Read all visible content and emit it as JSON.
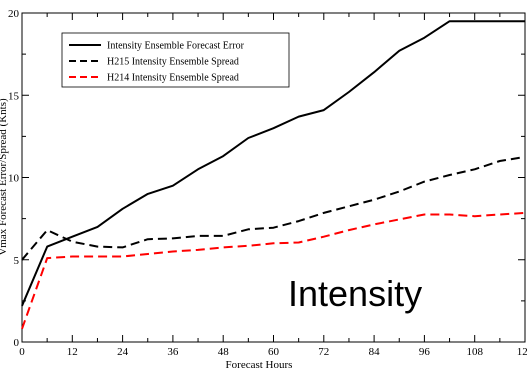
{
  "chart_data": {
    "type": "line",
    "xlabel": "Forecast Hours",
    "ylabel": "Vmax Forecast Error/Spread (Knts)",
    "xlim": [
      0,
      120
    ],
    "ylim": [
      0,
      20
    ],
    "xticks": [
      "0",
      "12",
      "24",
      "36",
      "48",
      "60",
      "72",
      "84",
      "96",
      "108",
      "120"
    ],
    "yticks": [
      "0",
      "5",
      "10",
      "15",
      "20"
    ],
    "grid": false,
    "legend_position": "top-left",
    "annotation": "Intensity",
    "series": [
      {
        "name": "Intensity Ensemble Forecast Error",
        "color": "#000000",
        "dash": "solid",
        "x": [
          0,
          6,
          12,
          18,
          24,
          30,
          36,
          42,
          48,
          54,
          60,
          66,
          72,
          78,
          84,
          90,
          96,
          102,
          108,
          114,
          120
        ],
        "y": [
          2.2,
          5.8,
          6.4,
          7.0,
          8.1,
          9.0,
          9.5,
          10.5,
          11.3,
          12.4,
          13.0,
          13.7,
          14.1,
          15.2,
          16.4,
          17.7,
          18.5,
          19.5,
          19.5,
          19.5,
          19.5
        ]
      },
      {
        "name": "H215 Intensity Ensemble Spread",
        "color": "#000000",
        "dash": "dashed",
        "x": [
          0,
          6,
          12,
          18,
          24,
          30,
          36,
          42,
          48,
          54,
          60,
          66,
          72,
          78,
          84,
          90,
          96,
          102,
          108,
          114,
          120
        ],
        "y": [
          5.0,
          6.8,
          6.1,
          5.8,
          5.75,
          6.25,
          6.3,
          6.45,
          6.45,
          6.85,
          6.95,
          7.35,
          7.85,
          8.25,
          8.65,
          9.15,
          9.75,
          10.15,
          10.5,
          11.0,
          11.25
        ]
      },
      {
        "name": "H214 Intensity Ensemble Spread",
        "color": "#ff0000",
        "dash": "dashed",
        "x": [
          0,
          6,
          12,
          18,
          24,
          30,
          36,
          42,
          48,
          54,
          60,
          66,
          72,
          78,
          84,
          90,
          96,
          102,
          108,
          114,
          120
        ],
        "y": [
          0.8,
          5.1,
          5.2,
          5.2,
          5.2,
          5.35,
          5.5,
          5.6,
          5.75,
          5.85,
          6.0,
          6.05,
          6.4,
          6.8,
          7.15,
          7.45,
          7.75,
          7.75,
          7.65,
          7.75,
          7.85
        ]
      }
    ]
  }
}
